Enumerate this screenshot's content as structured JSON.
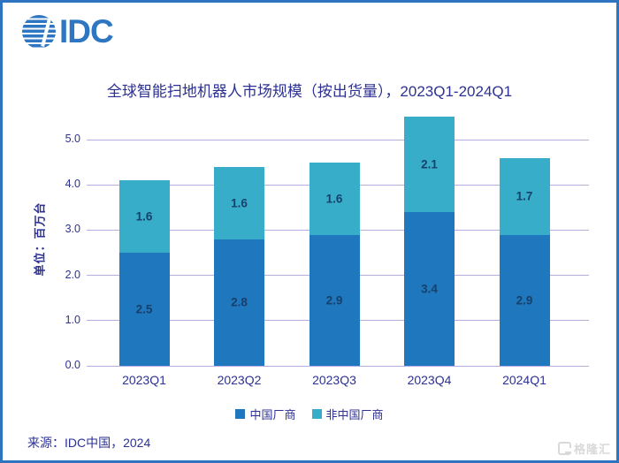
{
  "logo": {
    "text": "IDC"
  },
  "title": "全球智能扫地机器人市场规模（按出货量），2023Q1-2024Q1",
  "source": "来源：IDC中国，2024",
  "watermark": {
    "text": "格隆汇"
  },
  "colors": {
    "border_blue": "#2e74c0",
    "logo_blue": "#2e76c2",
    "bar_china": "#1f77be",
    "bar_non_china": "#38adc9",
    "text_indigo": "#2c3193",
    "data_label_navy": "#17406b",
    "gridline": "#b3ade0"
  },
  "chart_data": {
    "type": "bar",
    "subtype": "stacked",
    "title": "全球智能扫地机器人市场规模（按出货量），2023Q1-2024Q1",
    "ylabel": "单位：百万台",
    "xlabel": "",
    "categories": [
      "2023Q1",
      "2023Q2",
      "2023Q3",
      "2023Q4",
      "2024Q1"
    ],
    "series": [
      {
        "name": "中国厂商",
        "color": "#1f77be",
        "values": [
          2.5,
          2.8,
          2.9,
          3.4,
          2.9
        ]
      },
      {
        "name": "非中国厂商",
        "color": "#38adc9",
        "values": [
          1.6,
          1.6,
          1.6,
          2.1,
          1.7
        ]
      }
    ],
    "totals": [
      4.1,
      4.4,
      4.5,
      5.5,
      4.6
    ],
    "yticks": [
      "0.0",
      "1.0",
      "2.0",
      "3.0",
      "4.0",
      "5.0"
    ],
    "ylim": [
      0,
      5.5
    ],
    "grid": true,
    "legend_position": "bottom"
  }
}
